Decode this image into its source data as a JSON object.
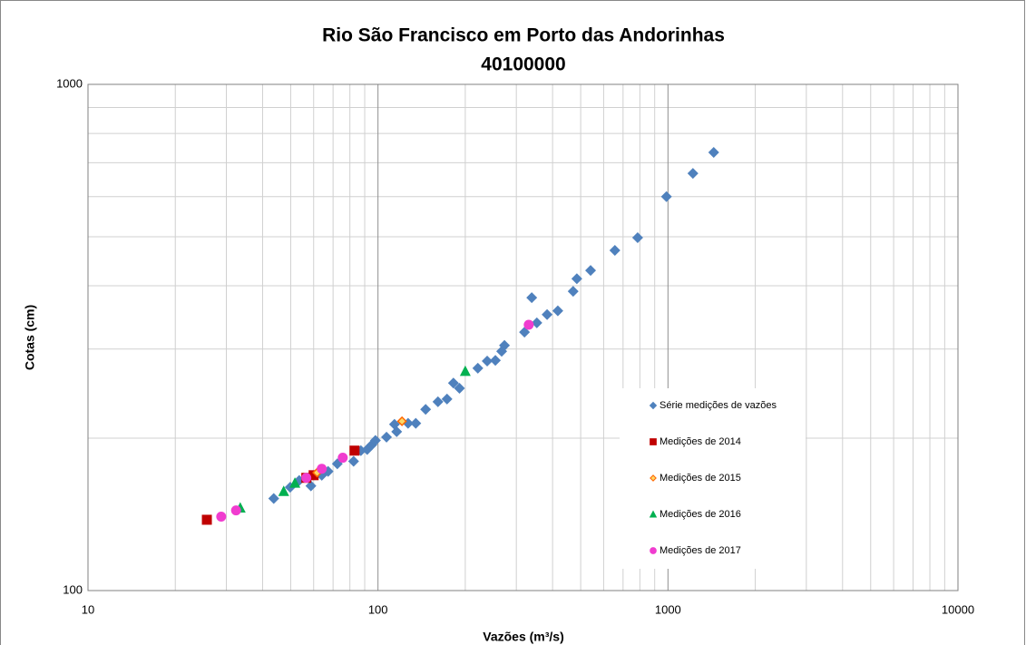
{
  "chart_data": {
    "type": "scatter",
    "title": "Rio São Francisco em Porto das Andorinhas",
    "subtitle": "40100000",
    "x_label": "Vazões (m³/s)",
    "y_label": "Cotas (cm)",
    "xscale": "log",
    "yscale": "log",
    "xlim": [
      10,
      10000
    ],
    "ylim": [
      100,
      1000
    ],
    "xticks": [
      10,
      100,
      1000,
      10000
    ],
    "yticks": [
      100,
      1000
    ],
    "grid": true,
    "legend": "right",
    "series": [
      {
        "name": "Série medições de vazões",
        "color": "#4f81bd",
        "marker": "diamond",
        "x": [
          43.7,
          49.8,
          53.5,
          58.7,
          64,
          67.3,
          72.4,
          82.4,
          87.3,
          91.8,
          95.2,
          98,
          107,
          116,
          114,
          127,
          135,
          146,
          161,
          173,
          182,
          191,
          221,
          238,
          254,
          267,
          273,
          320,
          339,
          353,
          383,
          417,
          471,
          485,
          541,
          656,
          786,
          988,
          1219,
          1438
        ],
        "values": [
          152,
          160,
          165,
          161,
          169,
          172,
          178,
          180,
          189,
          190,
          194,
          198,
          201,
          206,
          213,
          214,
          214,
          228,
          236,
          239,
          257,
          251,
          275,
          284,
          285,
          297,
          305,
          324,
          379,
          338,
          351,
          357,
          390,
          413,
          429,
          470,
          498,
          600,
          667,
          734
        ]
      },
      {
        "name": "Medições de 2014",
        "color": "#c00000",
        "marker": "square",
        "x": [
          25.7,
          56.6,
          60,
          83
        ],
        "values": [
          138,
          167,
          169,
          189
        ]
      },
      {
        "name": "Medições de 2015",
        "color": "#ff6600",
        "marker": "open-diamond",
        "x": [
          61.7,
          121
        ],
        "values": [
          171,
          216
        ]
      },
      {
        "name": "Medições de 2016",
        "color": "#00b050",
        "marker": "triangle",
        "x": [
          33.5,
          47.3,
          51.7,
          200
        ],
        "values": [
          145.6,
          157,
          163,
          271
        ]
      },
      {
        "name": "Medições de 2017",
        "color": "#f03ccf",
        "marker": "circle",
        "x": [
          28.8,
          32.4,
          56.6,
          64,
          75.6,
          331
        ],
        "values": [
          140,
          144,
          167,
          174,
          183,
          335
        ]
      }
    ]
  }
}
